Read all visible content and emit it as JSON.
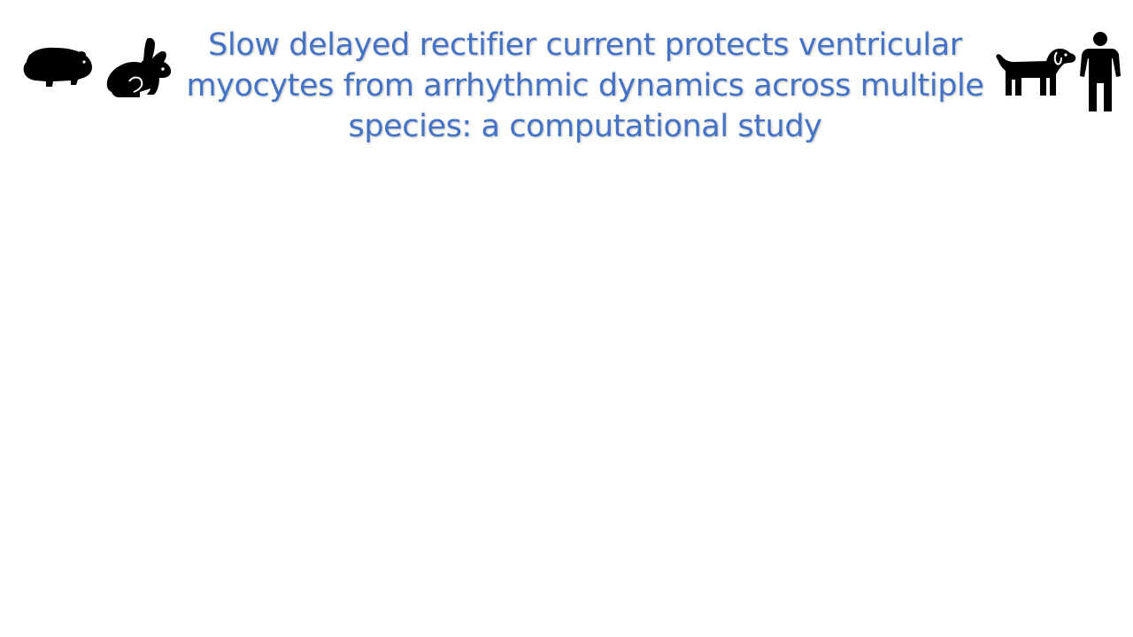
{
  "slide": {
    "title": "Slow delayed rectifier current protects ventricular myocytes from arrhythmic dynamics across multiple species: a computational study",
    "colors": {
      "title": "#4472C4",
      "icons": "#000000",
      "background": "#ffffff"
    },
    "icons": [
      "guinea-pig-icon",
      "rabbit-icon",
      "dog-icon",
      "human-icon"
    ]
  }
}
